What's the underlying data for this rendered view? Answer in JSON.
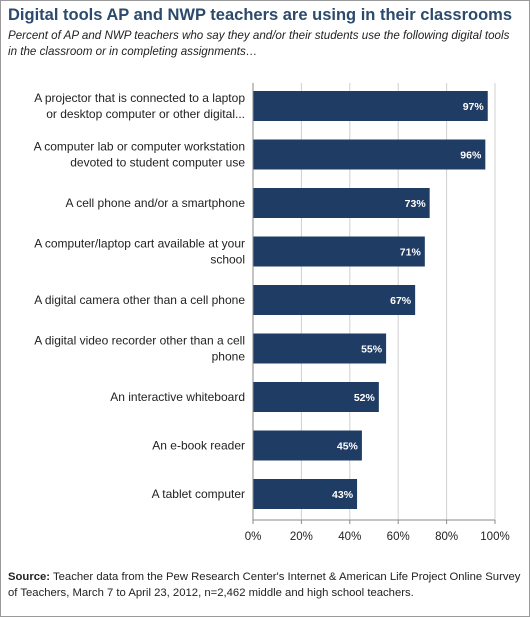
{
  "title": "Digital tools AP and NWP teachers are using in their classrooms",
  "subtitle": "Percent of AP and NWP teachers who say they and/or their students use the following digital tools in the classroom or in completing assignments…",
  "source": {
    "label": "Source:",
    "text": " Teacher data from the Pew Research Center's Internet & American Life Project Online Survey of Teachers, March 7 to April 23, 2012, n=2,462 middle and high school teachers."
  },
  "colors": {
    "bar": "#1f3c64",
    "title": "#2b4a6c",
    "grid": "#d0d0d0"
  },
  "chart_data": {
    "type": "bar",
    "orientation": "horizontal",
    "categories": [
      [
        "A projector that is connected to a laptop",
        "or desktop computer or other digital..."
      ],
      [
        "A computer lab or computer workstation",
        "devoted to student computer use"
      ],
      [
        "A cell phone and/or a smartphone"
      ],
      [
        "A computer/laptop cart available at your",
        "school"
      ],
      [
        "A digital camera other than a cell phone"
      ],
      [
        "A digital video recorder other than a cell",
        "phone"
      ],
      [
        "An interactive whiteboard"
      ],
      [
        "An e-book reader"
      ],
      [
        "A tablet computer"
      ]
    ],
    "values": [
      97,
      96,
      73,
      71,
      67,
      55,
      52,
      45,
      43
    ],
    "value_labels": [
      "97%",
      "96%",
      "73%",
      "71%",
      "67%",
      "55%",
      "52%",
      "45%",
      "43%"
    ],
    "xlim": [
      0,
      100
    ],
    "ticks": [
      0,
      20,
      40,
      60,
      80,
      100
    ],
    "tick_labels": [
      "0%",
      "20%",
      "40%",
      "60%",
      "80%",
      "100%"
    ],
    "grid": true
  }
}
